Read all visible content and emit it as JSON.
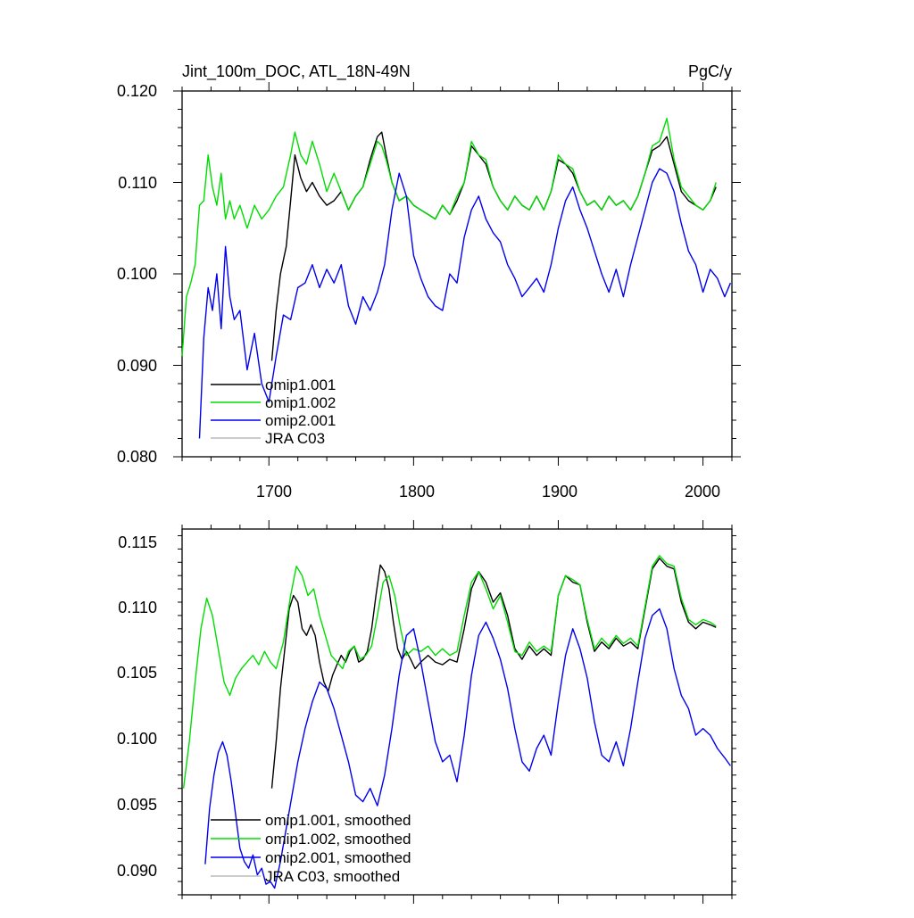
{
  "chart_data": [
    {
      "type": "line",
      "title": "Jint_100m_DOC, ATL_18N-49N",
      "units_label": "PgC/y",
      "xlim": [
        1640,
        2020
      ],
      "ylim": [
        0.08,
        0.12
      ],
      "x_ticks": [
        "1700",
        "1800",
        "1900",
        "2000"
      ],
      "y_ticks": [
        "0.080",
        "0.090",
        "0.100",
        "0.110",
        "0.120"
      ],
      "legend_position": "bottom-left",
      "series": [
        {
          "name": "omip1.001",
          "color": "#000000",
          "x": [
            1702,
            1705,
            1708,
            1712,
            1715,
            1718,
            1722,
            1726,
            1730,
            1735,
            1740,
            1745,
            1750,
            1755,
            1760,
            1765,
            1770,
            1775,
            1778,
            1781,
            1785,
            1790,
            1795,
            1800,
            1805,
            1810,
            1815,
            1820,
            1825,
            1830,
            1835,
            1840,
            1845,
            1850,
            1855,
            1860,
            1865,
            1870,
            1875,
            1880,
            1885,
            1890,
            1895,
            1900,
            1905,
            1910,
            1915,
            1920,
            1925,
            1930,
            1935,
            1940,
            1945,
            1950,
            1955,
            1960,
            1965,
            1970,
            1975,
            1980,
            1985,
            1990,
            1995,
            2000,
            2005,
            2009
          ],
          "y": [
            0.0905,
            0.096,
            0.1,
            0.103,
            0.108,
            0.113,
            0.1105,
            0.109,
            0.11,
            0.1085,
            0.1075,
            0.108,
            0.109,
            0.107,
            0.1085,
            0.1095,
            0.1125,
            0.115,
            0.1155,
            0.113,
            0.11,
            0.108,
            0.1085,
            0.1075,
            0.107,
            0.1065,
            0.106,
            0.1075,
            0.1065,
            0.108,
            0.11,
            0.114,
            0.113,
            0.112,
            0.1095,
            0.108,
            0.107,
            0.1085,
            0.1075,
            0.107,
            0.1085,
            0.107,
            0.109,
            0.1125,
            0.112,
            0.111,
            0.109,
            0.1075,
            0.108,
            0.107,
            0.1085,
            0.1075,
            0.108,
            0.107,
            0.1085,
            0.111,
            0.1135,
            0.114,
            0.115,
            0.112,
            0.109,
            0.108,
            0.1075,
            0.107,
            0.108,
            0.1095
          ]
        },
        {
          "name": "omip1.002",
          "color": "#00dd00",
          "x": [
            1640,
            1643,
            1646,
            1649,
            1652,
            1655,
            1658,
            1661,
            1664,
            1667,
            1670,
            1673,
            1676,
            1680,
            1685,
            1690,
            1695,
            1700,
            1705,
            1710,
            1715,
            1718,
            1722,
            1726,
            1730,
            1735,
            1740,
            1745,
            1750,
            1755,
            1760,
            1765,
            1770,
            1775,
            1778,
            1781,
            1785,
            1790,
            1795,
            1800,
            1805,
            1810,
            1815,
            1820,
            1825,
            1830,
            1835,
            1840,
            1845,
            1850,
            1855,
            1860,
            1865,
            1870,
            1875,
            1880,
            1885,
            1890,
            1895,
            1900,
            1905,
            1910,
            1915,
            1920,
            1925,
            1930,
            1935,
            1940,
            1945,
            1950,
            1955,
            1960,
            1965,
            1970,
            1975,
            1980,
            1985,
            1990,
            1995,
            2000,
            2005,
            2009
          ],
          "y": [
            0.091,
            0.0975,
            0.099,
            0.101,
            0.1075,
            0.108,
            0.113,
            0.1095,
            0.1075,
            0.111,
            0.106,
            0.108,
            0.106,
            0.1075,
            0.105,
            0.1075,
            0.106,
            0.107,
            0.1085,
            0.1095,
            0.113,
            0.1155,
            0.113,
            0.112,
            0.1145,
            0.112,
            0.109,
            0.111,
            0.109,
            0.107,
            0.1085,
            0.1095,
            0.112,
            0.1145,
            0.114,
            0.1125,
            0.11,
            0.108,
            0.1085,
            0.1075,
            0.107,
            0.1065,
            0.106,
            0.1075,
            0.1065,
            0.1085,
            0.11,
            0.1145,
            0.113,
            0.1125,
            0.1095,
            0.108,
            0.107,
            0.1085,
            0.1075,
            0.107,
            0.1085,
            0.107,
            0.109,
            0.113,
            0.112,
            0.1115,
            0.109,
            0.1075,
            0.108,
            0.107,
            0.1085,
            0.1075,
            0.108,
            0.107,
            0.1085,
            0.111,
            0.114,
            0.1145,
            0.117,
            0.1125,
            0.1095,
            0.1085,
            0.1075,
            0.107,
            0.108,
            0.11
          ]
        },
        {
          "name": "omip2.001",
          "color": "#0000ee",
          "x": [
            1652,
            1655,
            1658,
            1661,
            1664,
            1667,
            1670,
            1673,
            1676,
            1680,
            1685,
            1690,
            1695,
            1700,
            1705,
            1710,
            1715,
            1720,
            1725,
            1730,
            1735,
            1740,
            1745,
            1750,
            1755,
            1760,
            1765,
            1770,
            1775,
            1780,
            1785,
            1790,
            1795,
            1800,
            1805,
            1810,
            1815,
            1820,
            1825,
            1830,
            1835,
            1840,
            1845,
            1850,
            1855,
            1860,
            1865,
            1870,
            1875,
            1880,
            1885,
            1890,
            1895,
            1900,
            1905,
            1910,
            1915,
            1920,
            1925,
            1930,
            1935,
            1940,
            1945,
            1950,
            1955,
            1960,
            1965,
            1970,
            1975,
            1980,
            1985,
            1990,
            1995,
            2000,
            2005,
            2010,
            2015,
            2019
          ],
          "y": [
            0.082,
            0.093,
            0.0985,
            0.096,
            0.1,
            0.094,
            0.103,
            0.0975,
            0.095,
            0.096,
            0.0895,
            0.0935,
            0.088,
            0.086,
            0.091,
            0.0955,
            0.095,
            0.0985,
            0.099,
            0.101,
            0.0985,
            0.1005,
            0.099,
            0.101,
            0.0965,
            0.0945,
            0.0975,
            0.096,
            0.098,
            0.101,
            0.107,
            0.111,
            0.1085,
            0.102,
            0.0995,
            0.0975,
            0.0965,
            0.096,
            0.1,
            0.099,
            0.104,
            0.107,
            0.1085,
            0.106,
            0.1045,
            0.1035,
            0.101,
            0.0995,
            0.0975,
            0.0985,
            0.0995,
            0.098,
            0.101,
            0.105,
            0.108,
            0.1095,
            0.107,
            0.105,
            0.1025,
            0.1,
            0.098,
            0.1005,
            0.0975,
            0.101,
            0.104,
            0.107,
            0.11,
            0.1115,
            0.111,
            0.109,
            0.1055,
            0.1025,
            0.101,
            0.098,
            0.1005,
            0.0995,
            0.0975,
            0.099
          ]
        },
        {
          "name": "JRA C03",
          "color": "#bbbbbb",
          "x": [],
          "y": []
        }
      ]
    },
    {
      "type": "line",
      "xlim": [
        1640,
        2020
      ],
      "ylim": [
        0.0885,
        0.116
      ],
      "y_ticks": [
        "0.090",
        "0.095",
        "0.100",
        "0.105",
        "0.110",
        "0.115"
      ],
      "legend_position": "bottom-left",
      "series": [
        {
          "name": "omip1.001, smoothed",
          "color": "#000000",
          "x": [
            1702,
            1705,
            1708,
            1711,
            1714,
            1717,
            1720,
            1723,
            1726,
            1729,
            1732,
            1735,
            1738,
            1741,
            1744,
            1747,
            1750,
            1753,
            1756,
            1759,
            1762,
            1765,
            1768,
            1771,
            1774,
            1777,
            1780,
            1783,
            1786,
            1789,
            1792,
            1795,
            1798,
            1801,
            1805,
            1810,
            1815,
            1820,
            1825,
            1830,
            1835,
            1840,
            1845,
            1850,
            1855,
            1860,
            1865,
            1870,
            1875,
            1880,
            1885,
            1890,
            1895,
            1900,
            1905,
            1910,
            1915,
            1920,
            1925,
            1930,
            1935,
            1940,
            1945,
            1950,
            1955,
            1960,
            1965,
            1970,
            1975,
            1980,
            1985,
            1990,
            1995,
            2000,
            2005,
            2009
          ],
          "y": [
            0.0965,
            0.1,
            0.104,
            0.107,
            0.11,
            0.111,
            0.1105,
            0.1085,
            0.108,
            0.1088,
            0.108,
            0.106,
            0.1045,
            0.1038,
            0.105,
            0.1058,
            0.1065,
            0.106,
            0.1068,
            0.1072,
            0.106,
            0.1062,
            0.1068,
            0.1085,
            0.111,
            0.1133,
            0.1128,
            0.1115,
            0.109,
            0.107,
            0.1062,
            0.1068,
            0.1062,
            0.1055,
            0.106,
            0.1065,
            0.106,
            0.1058,
            0.1062,
            0.106,
            0.1085,
            0.1115,
            0.1128,
            0.112,
            0.1105,
            0.1112,
            0.1095,
            0.107,
            0.1062,
            0.1072,
            0.1065,
            0.107,
            0.1065,
            0.111,
            0.1125,
            0.112,
            0.1118,
            0.109,
            0.1068,
            0.1075,
            0.107,
            0.1078,
            0.1072,
            0.1075,
            0.107,
            0.11,
            0.113,
            0.1138,
            0.1132,
            0.113,
            0.1105,
            0.109,
            0.1085,
            0.109,
            0.1088,
            0.1086
          ]
        },
        {
          "name": "omip1.002, smoothed",
          "color": "#00dd00",
          "x": [
            1641,
            1645,
            1649,
            1653,
            1657,
            1661,
            1665,
            1669,
            1673,
            1677,
            1681,
            1685,
            1689,
            1693,
            1697,
            1701,
            1705,
            1710,
            1715,
            1719,
            1723,
            1727,
            1731,
            1735,
            1739,
            1743,
            1747,
            1751,
            1755,
            1759,
            1763,
            1767,
            1771,
            1775,
            1779,
            1783,
            1787,
            1791,
            1795,
            1800,
            1805,
            1810,
            1815,
            1820,
            1825,
            1830,
            1835,
            1840,
            1845,
            1850,
            1855,
            1860,
            1865,
            1870,
            1875,
            1880,
            1885,
            1890,
            1895,
            1900,
            1905,
            1910,
            1915,
            1920,
            1925,
            1930,
            1935,
            1940,
            1945,
            1950,
            1955,
            1960,
            1965,
            1970,
            1975,
            1980,
            1985,
            1990,
            1995,
            2000,
            2005,
            2009
          ],
          "y": [
            0.0965,
            0.1,
            0.1045,
            0.1085,
            0.1108,
            0.1095,
            0.107,
            0.1045,
            0.1035,
            0.1048,
            0.1055,
            0.106,
            0.1065,
            0.1058,
            0.1068,
            0.106,
            0.1055,
            0.1075,
            0.111,
            0.1132,
            0.1125,
            0.111,
            0.1115,
            0.1095,
            0.108,
            0.1065,
            0.106,
            0.1055,
            0.1068,
            0.1072,
            0.1062,
            0.1065,
            0.1072,
            0.1095,
            0.112,
            0.1125,
            0.111,
            0.1085,
            0.1065,
            0.107,
            0.1068,
            0.1072,
            0.1065,
            0.107,
            0.1065,
            0.1068,
            0.1095,
            0.112,
            0.1128,
            0.1115,
            0.11,
            0.111,
            0.109,
            0.1068,
            0.1065,
            0.1075,
            0.1068,
            0.1072,
            0.1068,
            0.111,
            0.1125,
            0.1122,
            0.1118,
            0.1092,
            0.107,
            0.1078,
            0.1072,
            0.108,
            0.1074,
            0.1078,
            0.1072,
            0.1102,
            0.1132,
            0.114,
            0.1134,
            0.1132,
            0.1108,
            0.1092,
            0.1088,
            0.1092,
            0.109,
            0.1087
          ]
        },
        {
          "name": "omip2.001, smoothed",
          "color": "#0000ee",
          "x": [
            1656,
            1659,
            1662,
            1665,
            1668,
            1671,
            1674,
            1677,
            1680,
            1683,
            1686,
            1689,
            1692,
            1695,
            1698,
            1701,
            1704,
            1708,
            1712,
            1716,
            1720,
            1725,
            1730,
            1735,
            1740,
            1745,
            1750,
            1755,
            1760,
            1765,
            1770,
            1775,
            1780,
            1785,
            1790,
            1795,
            1800,
            1805,
            1810,
            1815,
            1820,
            1825,
            1830,
            1835,
            1840,
            1845,
            1850,
            1855,
            1860,
            1865,
            1870,
            1875,
            1880,
            1885,
            1890,
            1895,
            1900,
            1905,
            1910,
            1915,
            1920,
            1925,
            1930,
            1935,
            1940,
            1945,
            1950,
            1955,
            1960,
            1965,
            1970,
            1975,
            1980,
            1985,
            1990,
            1995,
            2000,
            2005,
            2010,
            2015,
            2019
          ],
          "y": [
            0.0908,
            0.095,
            0.0975,
            0.0992,
            0.1,
            0.099,
            0.097,
            0.0945,
            0.092,
            0.091,
            0.0905,
            0.0915,
            0.09,
            0.0905,
            0.0893,
            0.0895,
            0.089,
            0.091,
            0.0935,
            0.096,
            0.0985,
            0.101,
            0.103,
            0.1045,
            0.104,
            0.1025,
            0.1005,
            0.0985,
            0.096,
            0.0955,
            0.0965,
            0.0952,
            0.0975,
            0.101,
            0.105,
            0.108,
            0.1085,
            0.106,
            0.103,
            0.1,
            0.0985,
            0.099,
            0.097,
            0.1005,
            0.105,
            0.108,
            0.109,
            0.1078,
            0.1062,
            0.104,
            0.101,
            0.0985,
            0.0978,
            0.0995,
            0.1005,
            0.099,
            0.103,
            0.1065,
            0.1085,
            0.107,
            0.1048,
            0.1015,
            0.099,
            0.0985,
            0.1,
            0.0982,
            0.101,
            0.1045,
            0.1078,
            0.1095,
            0.11,
            0.1085,
            0.1055,
            0.1035,
            0.1025,
            0.1005,
            0.101,
            0.1005,
            0.0995,
            0.0988,
            0.0982
          ]
        },
        {
          "name": "JRA C03, smoothed",
          "color": "#bbbbbb",
          "x": [],
          "y": []
        }
      ]
    }
  ]
}
